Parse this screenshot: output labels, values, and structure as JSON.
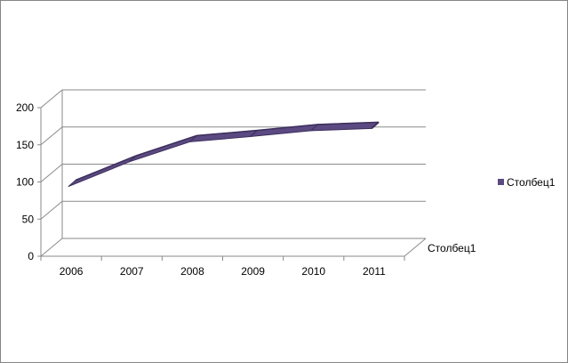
{
  "chart_data": {
    "type": "line",
    "style": "3d",
    "categories": [
      "2006",
      "2007",
      "2008",
      "2009",
      "2010",
      "2011"
    ],
    "series": [
      {
        "name": "Столбец1",
        "values": [
          100,
          133,
          160,
          167,
          175,
          178
        ],
        "color": "#5b4a82"
      }
    ],
    "title": "",
    "xlabel": "",
    "ylabel": "",
    "depth_axis_label": "Столбец1",
    "ylim": [
      0,
      200
    ],
    "yticks": [
      "0",
      "50",
      "100",
      "150",
      "200"
    ],
    "grid": true,
    "legend": {
      "position": "right",
      "entries": [
        "Столбец1"
      ]
    }
  },
  "colors": {
    "grid": "#8a8a8a",
    "series": "#5b4a82",
    "series_dark": "#3d2f5c",
    "frame": "#868686"
  }
}
